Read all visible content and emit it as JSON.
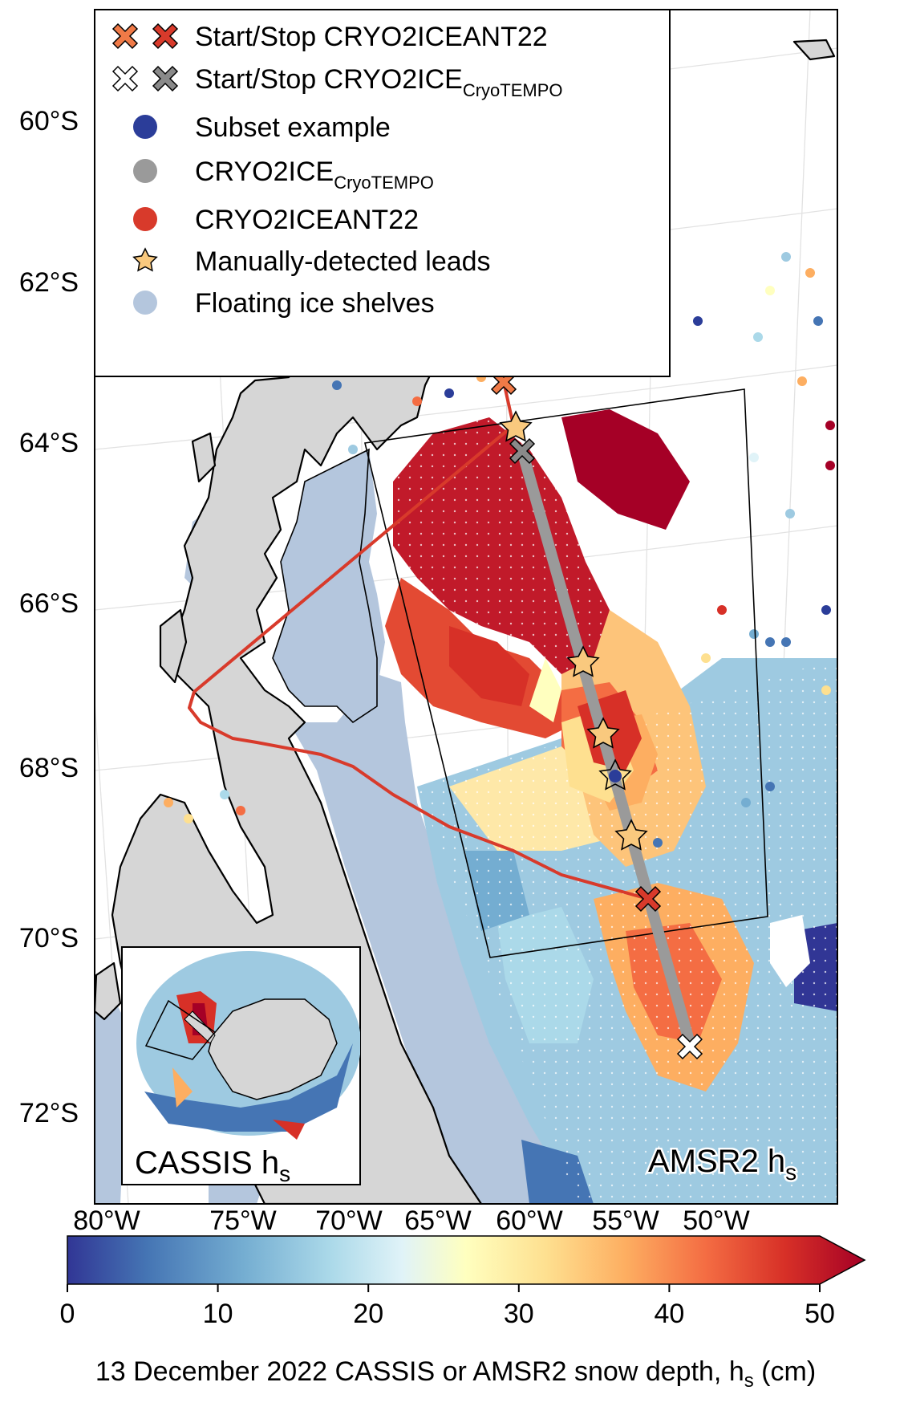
{
  "legend": {
    "items": [
      {
        "label": "Start/Stop CRYO2ICEANT22",
        "sub": "",
        "marker": "cross-pair",
        "colors": [
          "#f07a47",
          "#d83a2b"
        ]
      },
      {
        "label": "Start/Stop CRYO2ICE",
        "sub": "CryoTEMPO",
        "marker": "cross-pair",
        "colors": [
          "#ffffff",
          "#8a8a8a"
        ]
      },
      {
        "label": "Subset example",
        "sub": "",
        "marker": "dot",
        "colors": [
          "#2b3d99"
        ]
      },
      {
        "label": "CRYO2ICE",
        "sub": "CryoTEMPO",
        "marker": "dot",
        "colors": [
          "#9a9a9a"
        ]
      },
      {
        "label": "CRYO2ICEANT22",
        "sub": "",
        "marker": "dot",
        "colors": [
          "#d83a2b"
        ]
      },
      {
        "label": "Manually-detected leads",
        "sub": "",
        "marker": "star",
        "colors": [
          "#f9c97e"
        ]
      },
      {
        "label": "Floating ice shelves",
        "sub": "",
        "marker": "dot",
        "colors": [
          "#b4c6dd"
        ]
      }
    ]
  },
  "map": {
    "lat_labels": [
      "60°S",
      "62°S",
      "64°S",
      "66°S",
      "68°S",
      "70°S",
      "72°S"
    ],
    "lon_labels": [
      "80°W",
      "75°W",
      "70°W",
      "65°W",
      "60°W",
      "55°W",
      "50°W"
    ],
    "panel_label_main": "AMSR2 h",
    "panel_label_main_sub": "s",
    "colors": {
      "land": "#d6d6d6",
      "ice_shelf": "#b4c6dd",
      "track_ant22": "#d83a2b",
      "track_cryotempo": "#9a9a9a",
      "lead_star": "#f9c97e"
    }
  },
  "inset": {
    "label": "CASSIS h",
    "label_sub": "s"
  },
  "colorbar": {
    "ticks": [
      "0",
      "10",
      "20",
      "30",
      "40",
      "50"
    ],
    "range": [
      0,
      50
    ],
    "extend": "max",
    "colormap": "RdYlBu_r",
    "label_pre": "13 December 2022 CASSIS or AMSR2 snow depth, h",
    "label_sub": "s",
    "label_post": " (cm)"
  }
}
